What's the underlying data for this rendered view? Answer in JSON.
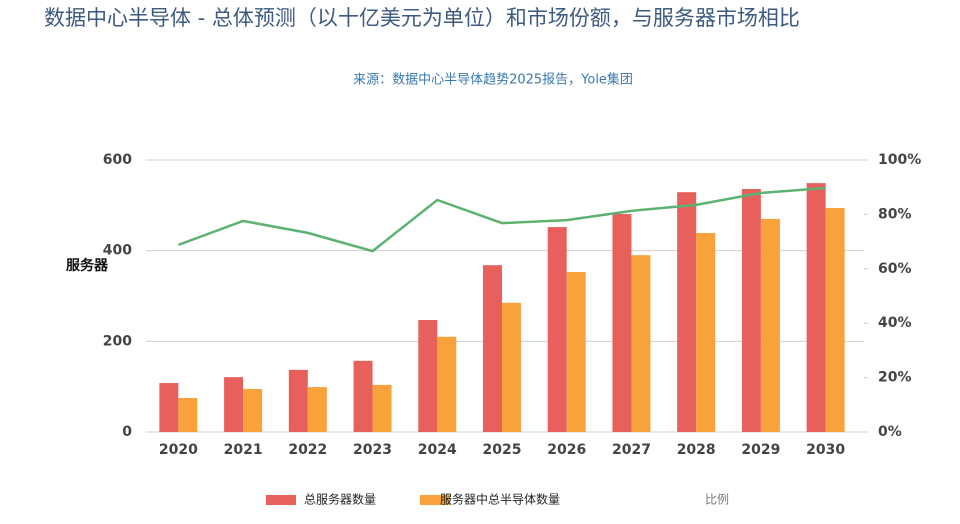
{
  "chart_data": {
    "type": "bar",
    "title": "数据中心半导体 - 总体预测（以十亿美元为单位）和市场份额，与服务器市场相比",
    "subtitle": "来源：数据中心半导体趋势2025报告，Yole集团",
    "ylabel": "服务器",
    "categories": [
      "2020",
      "2021",
      "2022",
      "2023",
      "2024",
      "2025",
      "2026",
      "2027",
      "2028",
      "2029",
      "2030"
    ],
    "series": [
      {
        "name": "总服务器数量",
        "color": "#e8605c",
        "values": [
          108,
          121,
          137,
          157,
          247,
          368,
          452,
          481,
          529,
          536,
          549
        ]
      },
      {
        "name": "服务器中总半导体数量",
        "color": "#f7a23b",
        "values": [
          75,
          95,
          99,
          104,
          210,
          285,
          353,
          390,
          439,
          470,
          494
        ]
      },
      {
        "name": "比例",
        "type": "line",
        "axis": "y2",
        "color": "#5cb270",
        "values": [
          68.8,
          77.6,
          73.2,
          66.5,
          85.3,
          76.8,
          77.9,
          81.3,
          83.5,
          87.9,
          89.7
        ]
      }
    ],
    "ylim": [
      0,
      600
    ],
    "yticks": [
      0,
      200,
      400,
      600
    ],
    "y2lim": [
      0,
      100
    ],
    "y2ticks": [
      {
        "value": 0,
        "label": "0%"
      },
      {
        "value": 20,
        "label": "20%"
      },
      {
        "value": 40,
        "label": "40%"
      },
      {
        "value": 60,
        "label": "60%"
      },
      {
        "value": 80,
        "label": "80%"
      },
      {
        "value": 100,
        "label": "100%"
      }
    ],
    "grid": true
  }
}
